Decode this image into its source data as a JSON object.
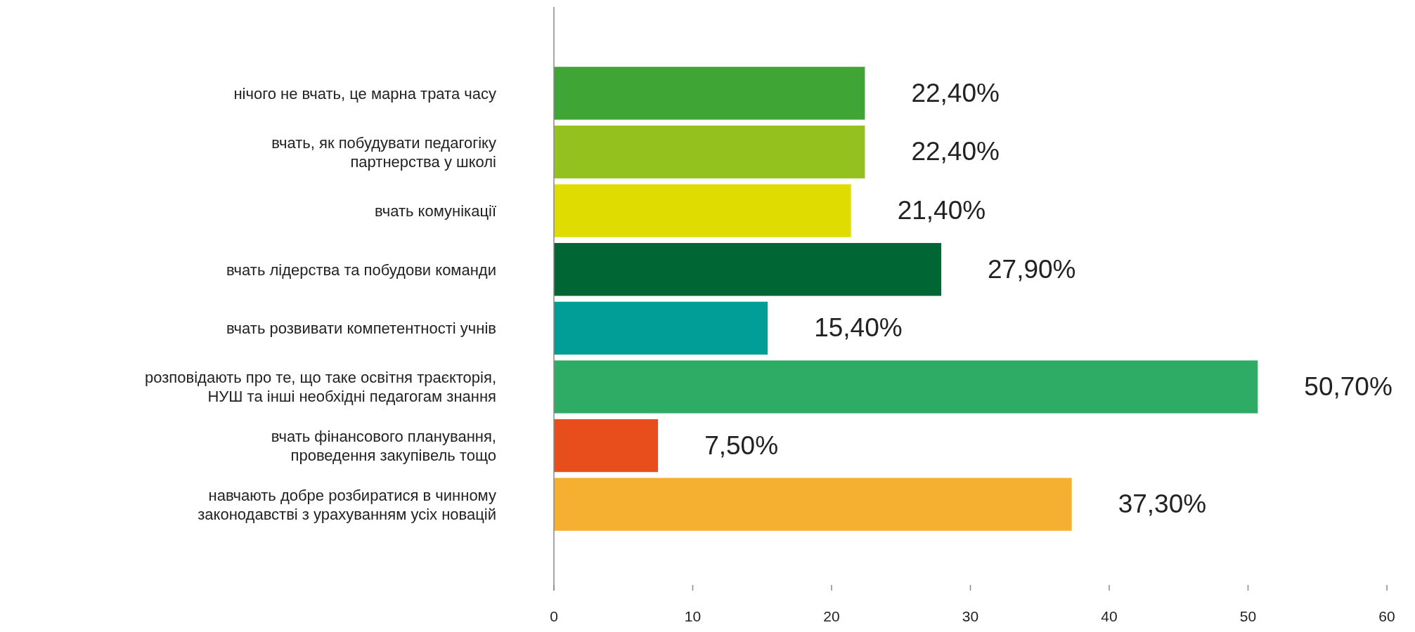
{
  "chart_data": {
    "type": "bar",
    "orientation": "horizontal",
    "categories": [
      "нічого не вчать, це марна трата часу",
      "вчать, як побудувати педагогіку\nпартнерства у школі",
      "вчать комунікації",
      "вчать лідерства та побудови команди",
      "вчать розвивати компетентності учнів",
      "розповідають про те, що таке освітня траєкторія,\nНУШ та інші необхідні педагогам знання",
      "вчать фінансового планування,\nпроведення закупівель тощо",
      "навчають добре розбиратися в чинному\nзаконодавстві з урахуванням усіх новацій"
    ],
    "values": [
      22.4,
      22.4,
      21.4,
      27.9,
      15.4,
      50.7,
      7.5,
      37.3
    ],
    "colors": [
      "#3fa535",
      "#95c11f",
      "#dedc00",
      "#006633",
      "#009e96",
      "#2eac66",
      "#e84e1b",
      "#f5b031"
    ],
    "value_labels": [
      "22,40%",
      "22,40%",
      "21,40%",
      "27,90%",
      "15,40%",
      "50,70%",
      "7,50%",
      "37,30%"
    ],
    "xlim": [
      0,
      60
    ],
    "xticks": [
      0,
      10,
      20,
      30,
      40,
      50,
      60
    ]
  }
}
